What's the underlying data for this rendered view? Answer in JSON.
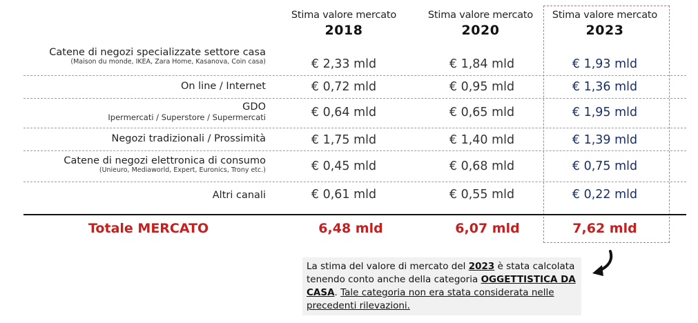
{
  "headers": [
    {
      "subtitle": "Stima valore mercato",
      "year": "2018"
    },
    {
      "subtitle": "Stima valore mercato",
      "year": "2020"
    },
    {
      "subtitle": "Stima valore mercato",
      "year": "2023"
    }
  ],
  "rows": [
    {
      "label": "Catene di negozi specializzate settore casa",
      "sublabel": "(Maison du monde, IKEA, Zara Home, Kasanova, Coin casa)",
      "v2018": "€ 2,33 mld",
      "v2020": "€ 1,84 mld",
      "v2023": "€ 1,93 mld"
    },
    {
      "label": "On line / Internet",
      "sublabel": "",
      "v2018": "€ 0,72 mld",
      "v2020": "€ 0,95 mld",
      "v2023": "€ 1,36 mld"
    },
    {
      "label": "GDO",
      "sublabel": "Ipermercati / Superstore / Supermercati",
      "v2018": "€ 0,64 mld",
      "v2020": "€ 0,65 mld",
      "v2023": "€ 1,95 mld"
    },
    {
      "label": "Negozi tradizionali / Prossimità",
      "sublabel": "",
      "v2018": "€ 1,75 mld",
      "v2020": "€ 1,40 mld",
      "v2023": "€ 1,39 mld"
    },
    {
      "label": "Catene di negozi elettronica di consumo",
      "sublabel": "(Unieuro, Mediaworld, Expert, Euronics, Trony etc.)",
      "v2018": "€ 0,45 mld",
      "v2020": "€ 0,68 mld",
      "v2023": "€ 0,75 mld"
    },
    {
      "label": "Altri canali",
      "sublabel": "",
      "v2018": "€ 0,61 mld",
      "v2020": "€ 0,55 mld",
      "v2023": "€ 0,22 mld"
    }
  ],
  "total": {
    "label": "Totale MERCATO",
    "v2018": "6,48 mld",
    "v2020": "6,07 mld",
    "v2023": "7,62 mld"
  },
  "note": {
    "p1": "La stima del valore di mercato del ",
    "year": "2023",
    "p2": " è stata calcolata tenendo conto anche della categoria ",
    "category": "OGGETTISTICA DA CASA",
    "p3": ". ",
    "underlined": "Tale categoria non era stata considerata nelle precedenti rilevazioni."
  },
  "colors": {
    "total": "#c42020",
    "highlight_values": "#1a2f66",
    "highlight_border": "#b07a8a"
  }
}
